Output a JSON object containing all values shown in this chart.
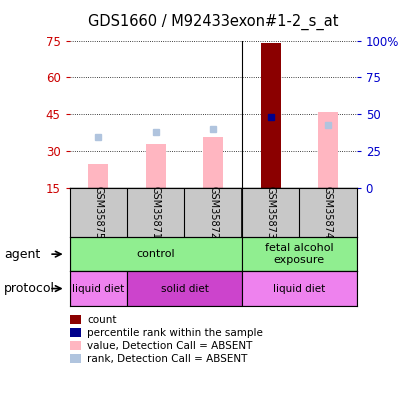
{
  "title": "GDS1660 / M92433exon#1-2_s_at",
  "samples": [
    "GSM35875",
    "GSM35871",
    "GSM35872",
    "GSM35873",
    "GSM35874"
  ],
  "bar_values": [
    25,
    33,
    36,
    74,
    46
  ],
  "bar_colors": [
    "#ffb6c1",
    "#ffb6c1",
    "#ffb6c1",
    "#8b0000",
    "#ffb6c1"
  ],
  "rank_values": [
    35,
    38,
    40,
    48,
    43
  ],
  "rank_colors": [
    "#b0c4de",
    "#b0c4de",
    "#b0c4de",
    "#00008b",
    "#b0c4de"
  ],
  "ylim_left": [
    15,
    75
  ],
  "ylim_right": [
    0,
    100
  ],
  "yticks_left": [
    15,
    30,
    45,
    60,
    75
  ],
  "yticks_right": [
    0,
    25,
    50,
    75,
    100
  ],
  "agent_groups": [
    {
      "label": "control",
      "start": 0,
      "end": 3,
      "color": "#90ee90"
    },
    {
      "label": "fetal alcohol\nexposure",
      "start": 3,
      "end": 5,
      "color": "#90ee90"
    }
  ],
  "protocol_groups": [
    {
      "label": "liquid diet",
      "start": 0,
      "end": 1,
      "color": "#ee82ee"
    },
    {
      "label": "solid diet",
      "start": 1,
      "end": 3,
      "color": "#cc44cc"
    },
    {
      "label": "liquid diet",
      "start": 3,
      "end": 5,
      "color": "#ee82ee"
    }
  ],
  "legend_items": [
    {
      "label": "count",
      "color": "#8b0000"
    },
    {
      "label": "percentile rank within the sample",
      "color": "#00008b"
    },
    {
      "label": "value, Detection Call = ABSENT",
      "color": "#ffb6c1"
    },
    {
      "label": "rank, Detection Call = ABSENT",
      "color": "#b0c4de"
    }
  ],
  "left_color": "#cc0000",
  "right_color": "#0000cc",
  "sample_box_color": "#c8c8c8",
  "bar_width": 0.35
}
